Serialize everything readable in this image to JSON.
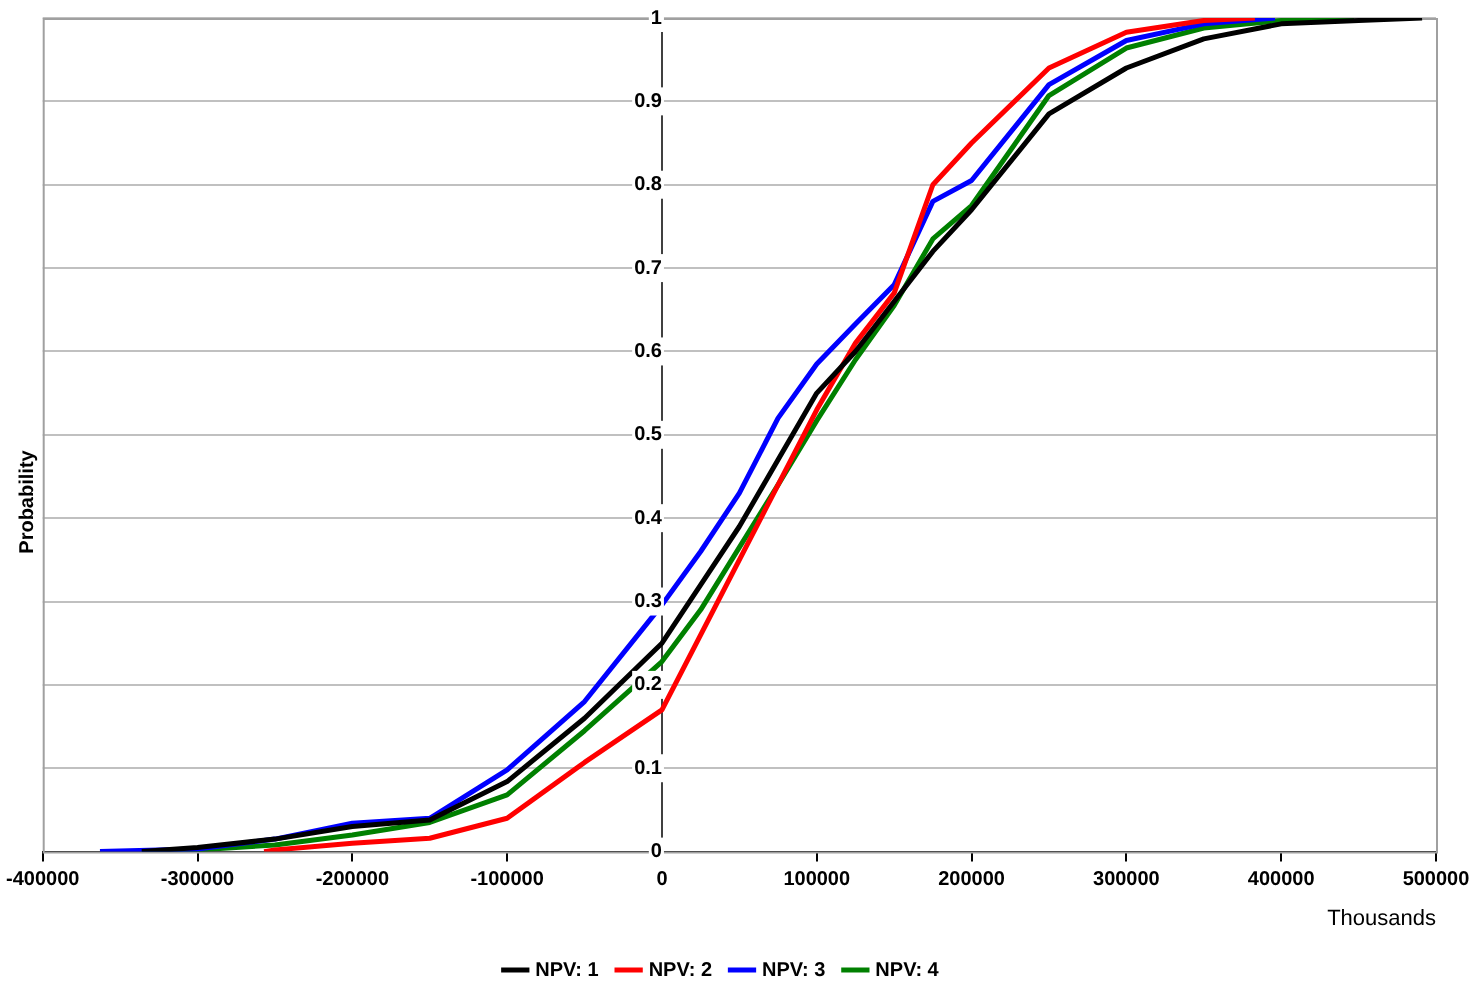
{
  "chart_data": {
    "type": "line",
    "xlabel": "Thousands",
    "ylabel": "Probability",
    "xlim": [
      -400000,
      500000
    ],
    "xticks": [
      -400000,
      -300000,
      -200000,
      -100000,
      0,
      100000,
      200000,
      300000,
      400000,
      500000
    ],
    "ylim": [
      0,
      1
    ],
    "yticks": [
      0,
      0.1,
      0.2,
      0.3,
      0.4,
      0.5,
      0.6,
      0.7,
      0.8,
      0.9,
      1
    ],
    "grid": "y",
    "legend": "bottom",
    "marker": "none",
    "line_style": "solid",
    "series": [
      {
        "name": "NPV: 1",
        "color": "#000000",
        "x": [
          -336000,
          -300000,
          -250000,
          -200000,
          -150000,
          -100000,
          -50000,
          0,
          25000,
          50000,
          75000,
          100000,
          125000,
          150000,
          175000,
          200000,
          250000,
          300000,
          350000,
          400000,
          450000,
          491000
        ],
        "values": [
          0,
          0.005,
          0.015,
          0.03,
          0.038,
          0.084,
          0.16,
          0.25,
          0.32,
          0.39,
          0.47,
          0.55,
          0.6,
          0.66,
          0.72,
          0.77,
          0.885,
          0.94,
          0.975,
          0.993,
          0.997,
          1
        ]
      },
      {
        "name": "NPV: 2",
        "color": "#ff0000",
        "x": [
          -257000,
          -250000,
          -200000,
          -150000,
          -100000,
          -50000,
          0,
          25000,
          50000,
          75000,
          100000,
          125000,
          150000,
          175000,
          200000,
          250000,
          300000,
          350000,
          383000
        ],
        "values": [
          0,
          0.002,
          0.01,
          0.016,
          0.04,
          0.107,
          0.17,
          0.26,
          0.35,
          0.44,
          0.53,
          0.61,
          0.67,
          0.8,
          0.85,
          0.94,
          0.983,
          0.997,
          1
        ]
      },
      {
        "name": "NPV: 3",
        "color": "#0000ff",
        "x": [
          -363000,
          -300000,
          -250000,
          -200000,
          -150000,
          -100000,
          -50000,
          0,
          25000,
          50000,
          75000,
          100000,
          125000,
          150000,
          175000,
          200000,
          250000,
          300000,
          350000,
          396000
        ],
        "values": [
          0,
          0.003,
          0.015,
          0.034,
          0.04,
          0.098,
          0.18,
          0.296,
          0.36,
          0.43,
          0.52,
          0.585,
          0.633,
          0.68,
          0.78,
          0.805,
          0.92,
          0.973,
          0.993,
          1
        ]
      },
      {
        "name": "NPV: 4",
        "color": "#008000",
        "x": [
          -336000,
          -300000,
          -250000,
          -200000,
          -150000,
          -100000,
          -50000,
          0,
          25000,
          50000,
          75000,
          100000,
          125000,
          150000,
          175000,
          200000,
          250000,
          300000,
          350000,
          400000,
          447000
        ],
        "values": [
          0,
          0.002,
          0.008,
          0.02,
          0.035,
          0.068,
          0.145,
          0.228,
          0.29,
          0.365,
          0.44,
          0.517,
          0.59,
          0.655,
          0.735,
          0.775,
          0.907,
          0.964,
          0.988,
          0.997,
          1
        ]
      }
    ]
  }
}
